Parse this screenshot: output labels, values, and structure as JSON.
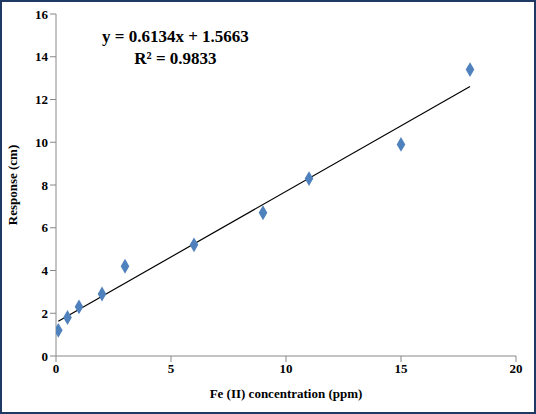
{
  "chart_data": {
    "type": "scatter",
    "x_label": "Fe (II)  concentration (ppm)",
    "y_label": "Response (cm)",
    "x": [
      0.1,
      0.5,
      1,
      2,
      3,
      6,
      9,
      11,
      15,
      18
    ],
    "values": [
      1.2,
      1.8,
      2.3,
      2.9,
      4.2,
      5.2,
      6.7,
      8.3,
      9.9,
      13.4
    ],
    "color": "#4f81bd",
    "marker": "diamond",
    "xlim": [
      0,
      20
    ],
    "xticks": [
      0,
      5,
      10,
      15,
      20
    ],
    "ylim": [
      0,
      16
    ],
    "yticks": [
      0,
      2,
      4,
      6,
      8,
      10,
      12,
      14,
      16
    ],
    "grid": false,
    "trendline": {
      "slope": 0.6134,
      "intercept": 1.5663,
      "color": "#000000"
    },
    "annotations": [
      "y = 0.6134x + 1.5663",
      "R² = 0.9833"
    ]
  }
}
